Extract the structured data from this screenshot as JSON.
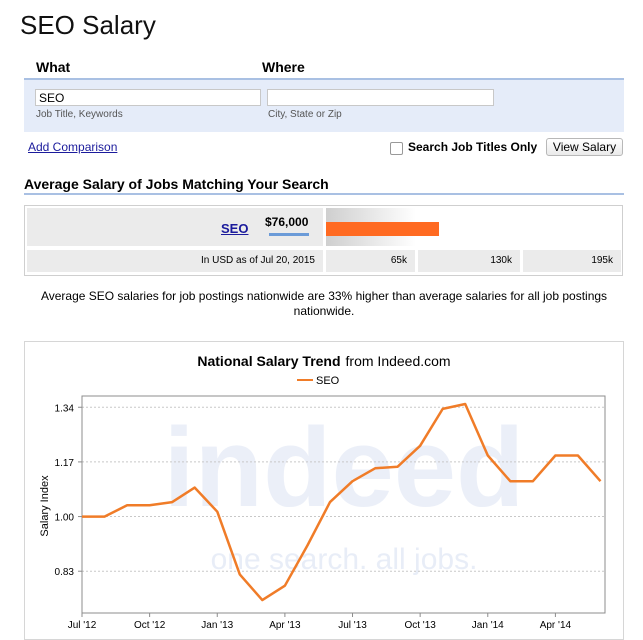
{
  "page": {
    "title": "SEO Salary"
  },
  "search": {
    "what_label": "What",
    "where_label": "Where",
    "what_value": "SEO",
    "where_value": "",
    "what_hint": "Job Title, Keywords",
    "where_hint": "City, State or Zip",
    "add_comparison": "Add Comparison",
    "titles_only_label": "Search Job Titles Only",
    "titles_only_checked": false,
    "view_button": "View Salary"
  },
  "results": {
    "heading": "Average Salary of Jobs Matching Your Search",
    "job": "SEO",
    "salary": "$76,000",
    "salary_value": 76000,
    "note": "In USD as of Jul 20, 2015",
    "scale": [
      "65k",
      "130k",
      "195k"
    ],
    "summary": "Average SEO salaries for job postings nationwide are 33% higher than average salaries for all job postings nationwide.",
    "bar_color": "#ff6a21"
  },
  "chart_data": {
    "type": "line",
    "title": "National Salary Trend",
    "subtitle": "from Indeed.com",
    "ylabel": "Salary Index",
    "xlabel": "",
    "x_ticks": [
      "Jul '12",
      "Oct '12",
      "Jan '13",
      "Apr '13",
      "Jul '13",
      "Oct '13",
      "Jan '14",
      "Apr '14"
    ],
    "y_ticks": [
      0.83,
      1.0,
      1.17,
      1.34
    ],
    "ylim": [
      0.7,
      1.375
    ],
    "xlim": [
      0,
      23.2
    ],
    "grid": true,
    "legend": "top-center",
    "watermark": {
      "brand": "indeed",
      "tagline": "one search. all jobs."
    },
    "series": [
      {
        "name": "SEO",
        "color": "#f07c28",
        "x": [
          0,
          1,
          2,
          3,
          4,
          5,
          6,
          7,
          8,
          9,
          10,
          11,
          12,
          13,
          14,
          15,
          16,
          17,
          18,
          19,
          20,
          21,
          22,
          23
        ],
        "values": [
          1.0,
          1.0,
          1.035,
          1.035,
          1.045,
          1.09,
          1.015,
          0.82,
          0.74,
          0.785,
          0.91,
          1.045,
          1.11,
          1.15,
          1.155,
          1.22,
          1.335,
          1.35,
          1.19,
          1.11,
          1.11,
          1.19,
          1.19,
          1.11
        ]
      }
    ]
  }
}
